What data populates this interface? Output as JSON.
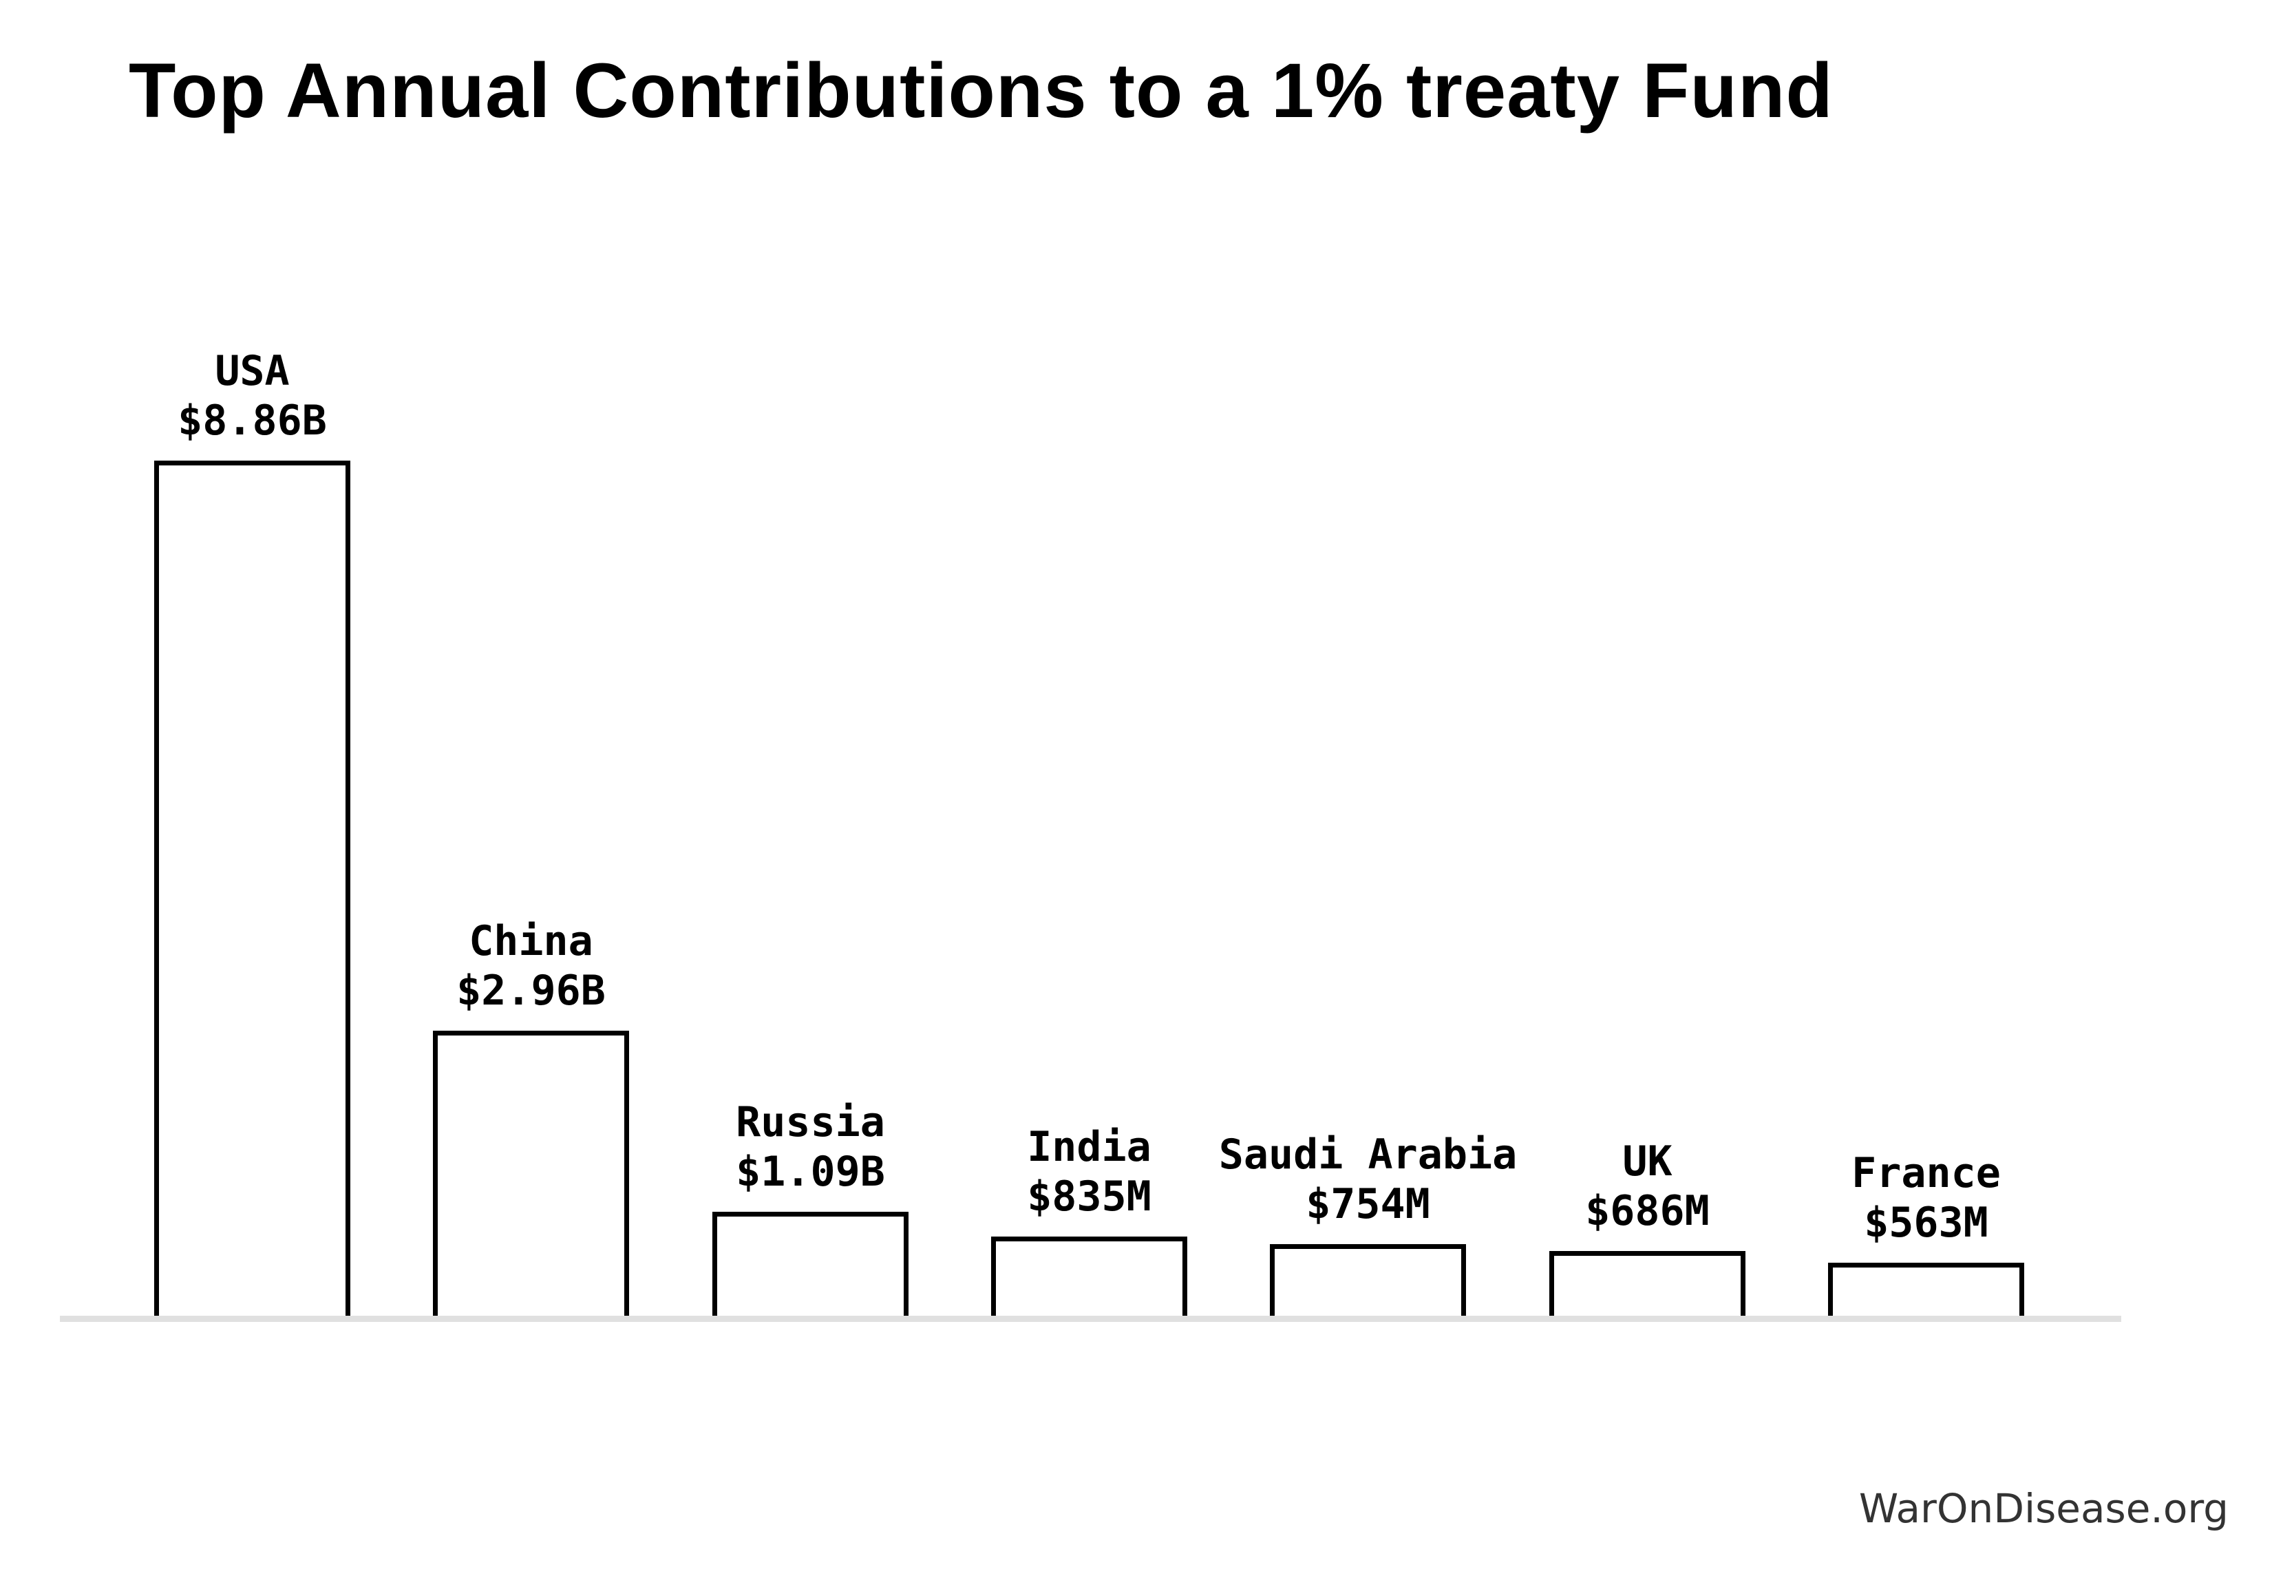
{
  "title": "Top Annual Contributions to a 1% treaty Fund",
  "watermark": "WarOnDisease.org",
  "colors": {
    "bar_fill": "#ffffff",
    "bar_border": "#000000",
    "axis_line": "#e0e0e0",
    "text": "#000000",
    "watermark_text": "#333333"
  },
  "chart_data": {
    "type": "bar",
    "title": "Top Annual Contributions to a 1% treaty Fund",
    "categories": [
      "USA",
      "China",
      "Russia",
      "India",
      "Saudi Arabia",
      "UK",
      "France"
    ],
    "values_usd_billions": [
      8.86,
      2.96,
      1.09,
      0.835,
      0.754,
      0.686,
      0.563
    ],
    "value_labels": [
      "$8.86B",
      "$2.96B",
      "$1.09B",
      "$835M",
      "$754M",
      "$686M",
      "$563M"
    ],
    "xlabel": "",
    "ylabel": "",
    "ylim": [
      0,
      9.5
    ],
    "grid": false,
    "legend": false,
    "bar_style": "white fill with black outline",
    "annotations": "country name and dollar value centered above each bar"
  }
}
